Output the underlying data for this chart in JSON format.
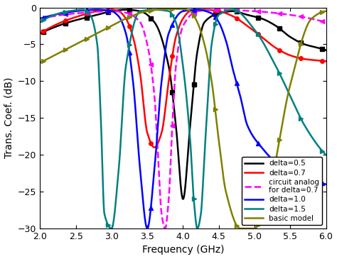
{
  "xlabel": "Frequency (GHz)",
  "ylabel": "Trans. Coef. (dB)",
  "xlim": [
    2.0,
    6.0
  ],
  "ylim": [
    -30,
    0
  ],
  "xticks": [
    2.0,
    2.5,
    3.0,
    3.5,
    4.0,
    4.5,
    5.0,
    5.5,
    6.0
  ],
  "yticks": [
    0,
    -5,
    -10,
    -15,
    -20,
    -25,
    -30
  ],
  "background": "#ffffff",
  "curves": [
    {
      "label": "delta=0.5",
      "color": "#000000",
      "linestyle": "-",
      "marker": "s",
      "markersize": 4,
      "linewidth": 1.8,
      "pts_x": [
        2.0,
        2.4,
        2.8,
        3.0,
        3.2,
        3.4,
        3.6,
        3.8,
        3.9,
        4.0,
        4.1,
        4.2,
        4.3,
        4.5,
        4.7,
        4.9,
        5.1,
        5.3,
        5.5,
        5.7,
        5.9,
        6.0
      ],
      "pts_y": [
        -3.5,
        -2.0,
        -1.0,
        -0.5,
        -0.3,
        -0.5,
        -2.0,
        -8.0,
        -16.0,
        -26.0,
        -16.0,
        -6.0,
        -2.0,
        -0.8,
        -0.5,
        -1.0,
        -1.5,
        -2.5,
        -4.0,
        -5.0,
        -5.5,
        -5.8
      ]
    },
    {
      "label": "delta=0.7",
      "color": "#ff0000",
      "linestyle": "-",
      "marker": "o",
      "markersize": 4,
      "linewidth": 1.8,
      "pts_x": [
        2.0,
        2.3,
        2.6,
        2.8,
        3.0,
        3.1,
        3.2,
        3.3,
        3.4,
        3.5,
        3.6,
        3.7,
        3.8,
        3.9,
        4.0,
        4.1,
        4.3,
        4.5,
        4.7,
        4.9,
        5.1,
        5.3,
        5.5,
        5.7,
        5.9,
        6.0
      ],
      "pts_y": [
        -3.5,
        -2.0,
        -1.0,
        -0.5,
        -0.3,
        -0.5,
        -1.5,
        -4.0,
        -9.0,
        -17.0,
        -19.0,
        -17.0,
        -10.0,
        -4.0,
        -1.5,
        -0.5,
        -0.3,
        -0.5,
        -1.2,
        -2.5,
        -4.0,
        -5.5,
        -6.5,
        -7.0,
        -7.2,
        -7.3
      ]
    },
    {
      "label": "circuit analog\nfor delta=0.7",
      "color": "#ff00ff",
      "linestyle": "--",
      "marker": "<",
      "markersize": 4,
      "linewidth": 1.8,
      "pts_x": [
        2.0,
        2.5,
        3.0,
        3.2,
        3.4,
        3.5,
        3.6,
        3.65,
        3.7,
        3.75,
        3.8,
        3.85,
        3.9,
        4.0,
        4.2,
        4.5,
        5.0,
        5.5,
        6.0
      ],
      "pts_y": [
        -1.5,
        -0.8,
        -0.5,
        -0.7,
        -2.0,
        -5.0,
        -12.0,
        -20.0,
        -28.0,
        -30.0,
        -26.0,
        -16.0,
        -8.0,
        -2.5,
        -0.5,
        -0.3,
        -0.5,
        -1.0,
        -2.0
      ]
    },
    {
      "label": "delta=1.0",
      "color": "#0000ff",
      "linestyle": "-",
      "marker": "^",
      "markersize": 4,
      "linewidth": 1.8,
      "pts_x": [
        2.0,
        2.3,
        2.6,
        2.8,
        3.0,
        3.1,
        3.2,
        3.3,
        3.4,
        3.5,
        3.6,
        3.7,
        3.8,
        4.0,
        4.2,
        4.4,
        4.5,
        4.6,
        4.7,
        4.8,
        4.9,
        5.1,
        5.3,
        5.5,
        5.7,
        6.0
      ],
      "pts_y": [
        -1.5,
        -0.8,
        -0.4,
        -0.3,
        -0.5,
        -1.2,
        -3.5,
        -10.0,
        -22.0,
        -30.0,
        -22.0,
        -10.0,
        -3.5,
        -0.5,
        -0.3,
        -0.8,
        -2.0,
        -4.5,
        -8.5,
        -12.0,
        -16.0,
        -19.0,
        -21.0,
        -22.0,
        -23.0,
        -24.0
      ]
    },
    {
      "label": "delta=1.5",
      "color": "#008080",
      "linestyle": "-",
      "marker": ">",
      "markersize": 4,
      "linewidth": 1.8,
      "pts_x": [
        2.0,
        2.2,
        2.4,
        2.6,
        2.7,
        2.8,
        2.85,
        2.9,
        3.0,
        3.1,
        3.2,
        3.4,
        3.6,
        3.8,
        3.9,
        4.0,
        4.1,
        4.15,
        4.2,
        4.25,
        4.3,
        4.35,
        4.4,
        4.5,
        4.7,
        5.0,
        5.3,
        5.5,
        5.7,
        6.0
      ],
      "pts_y": [
        -2.0,
        -1.0,
        -0.5,
        -0.3,
        -1.0,
        -5.0,
        -15.0,
        -28.0,
        -30.0,
        -22.0,
        -8.0,
        -0.5,
        -0.3,
        -0.5,
        -2.0,
        -8.0,
        -18.0,
        -26.0,
        -30.0,
        -28.0,
        -20.0,
        -12.0,
        -5.0,
        -1.0,
        -0.3,
        -3.0,
        -8.0,
        -12.0,
        -16.0,
        -20.0
      ]
    },
    {
      "label": "basic model",
      "color": "#808000",
      "linestyle": "-",
      "marker": ">",
      "markersize": 4,
      "linewidth": 1.8,
      "pts_x": [
        2.0,
        2.2,
        2.5,
        2.8,
        3.0,
        3.2,
        3.5,
        3.8,
        4.0,
        4.1,
        4.2,
        4.3,
        4.4,
        4.5,
        4.6,
        4.8,
        5.0,
        5.2,
        5.5,
        5.8,
        6.0
      ],
      "pts_y": [
        -7.5,
        -6.5,
        -5.0,
        -3.5,
        -2.5,
        -1.5,
        -0.5,
        -0.2,
        -0.2,
        -0.5,
        -2.0,
        -5.0,
        -10.0,
        -18.0,
        -25.0,
        -30.0,
        -30.0,
        -25.0,
        -10.5,
        -1.5,
        -0.5
      ]
    }
  ]
}
